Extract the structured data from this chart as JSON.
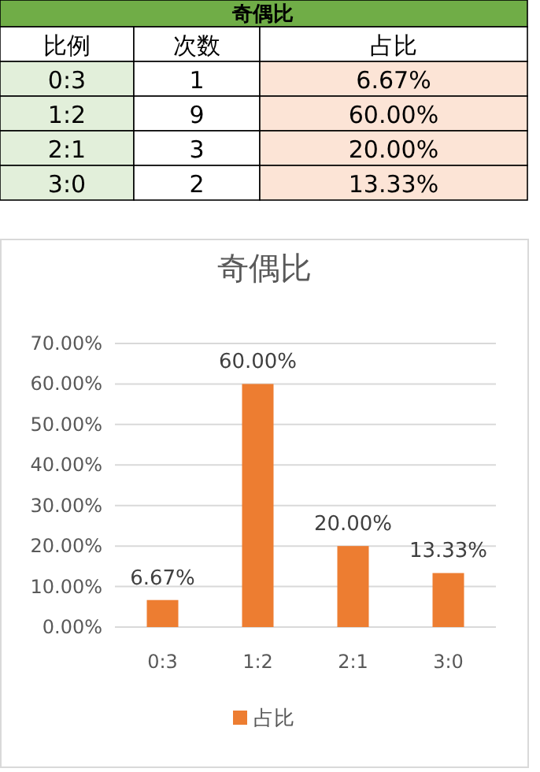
{
  "chart_data": [
    {
      "type": "other",
      "title": "奇偶比",
      "categories": [
        "比例",
        "次数",
        "占比"
      ],
      "cell_labels": [
        [
          "0:3",
          "1",
          "6.67%"
        ],
        [
          "1:2",
          "9",
          "60.00%"
        ],
        [
          "2:1",
          "3",
          "20.00%"
        ],
        [
          "3:0",
          "2",
          "13.33%"
        ]
      ]
    },
    {
      "type": "bar",
      "title": "奇偶比",
      "categories": [
        "0:3",
        "1:2",
        "2:1",
        "3:0"
      ],
      "series": [
        {
          "name": "占比",
          "color": "#ed7d31",
          "values": [
            6.67,
            60,
            20,
            13.33
          ],
          "value_labels": [
            "6.67%",
            "60.00%",
            "20.00%",
            "13.33%"
          ]
        }
      ],
      "ylim": [
        0,
        70
      ],
      "yticks": [
        {
          "value": 0,
          "label": "0.00%"
        },
        {
          "value": 10,
          "label": "10.00%"
        },
        {
          "value": 20,
          "label": "20.00%"
        },
        {
          "value": 30,
          "label": "30.00%"
        },
        {
          "value": 40,
          "label": "40.00%"
        },
        {
          "value": 50,
          "label": "50.00%"
        },
        {
          "value": 60,
          "label": "60.00%"
        },
        {
          "value": 70,
          "label": "70.00%"
        }
      ],
      "grid": "y",
      "legend": "bottom"
    }
  ]
}
